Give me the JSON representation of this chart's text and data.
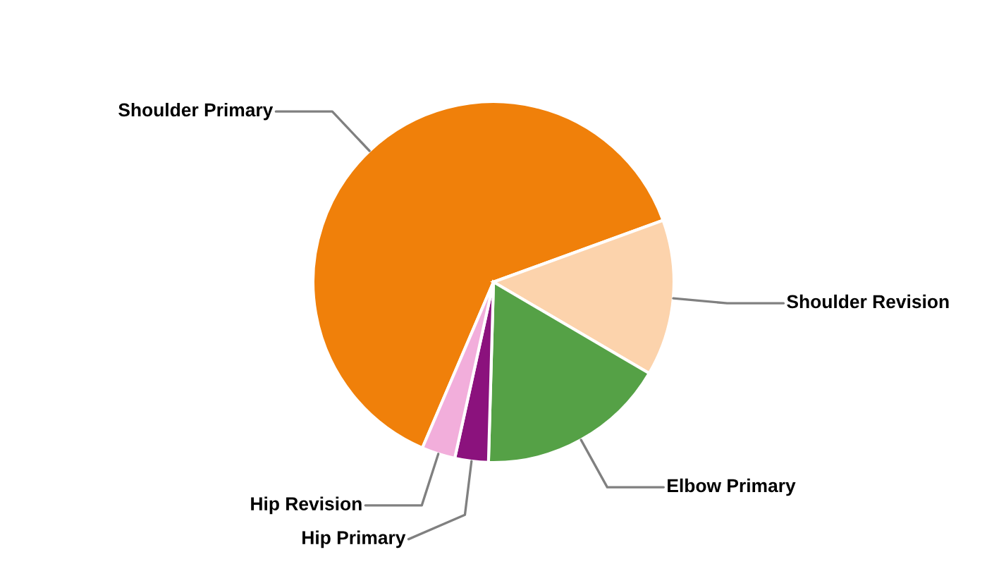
{
  "chart_data": {
    "type": "pie",
    "categories": [
      "Shoulder Primary",
      "Shoulder Revision",
      "Elbow Primary",
      "Hip Primary",
      "Hip Revision"
    ],
    "values": [
      63,
      14,
      17,
      3,
      3
    ],
    "colors": [
      "#f0800a",
      "#fcd3ac",
      "#55a146",
      "#8b127d",
      "#f2aedb"
    ]
  }
}
